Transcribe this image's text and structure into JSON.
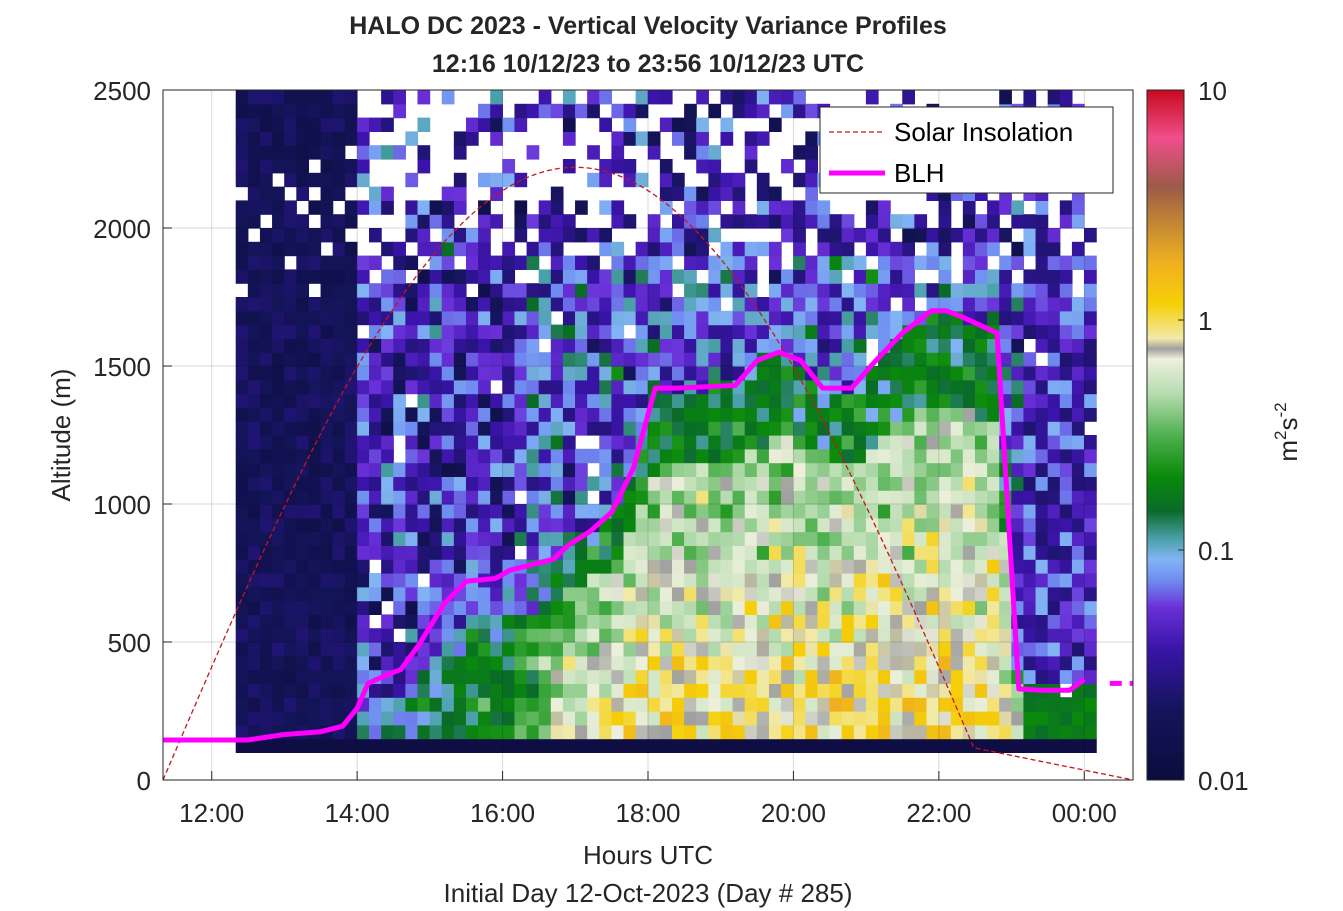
{
  "chart_data": {
    "type": "heatmap",
    "title": "HALO DC 2023 - Vertical Velocity Variance Profiles",
    "subtitle": "12:16 10/12/23 to 23:56 10/12/23  UTC",
    "xlabel": "Hours UTC",
    "xlabel2": "Initial Day 12-Oct-2023 (Day # 285)",
    "ylabel": "Altitude (m)",
    "colorbar_label_base": "m",
    "colorbar_label_exp1": "2",
    "colorbar_label_mid": "s",
    "colorbar_label_exp2": "-2",
    "xlim_hours": [
      11.33,
      24.67
    ],
    "ylim": [
      0,
      2500
    ],
    "x_ticks": [
      {
        "v": 12,
        "label": "12:00"
      },
      {
        "v": 14,
        "label": "14:00"
      },
      {
        "v": 16,
        "label": "16:00"
      },
      {
        "v": 18,
        "label": "18:00"
      },
      {
        "v": 20,
        "label": "20:00"
      },
      {
        "v": 22,
        "label": "22:00"
      },
      {
        "v": 24,
        "label": "00:00"
      }
    ],
    "y_ticks": [
      {
        "v": 0,
        "label": "0"
      },
      {
        "v": 500,
        "label": "500"
      },
      {
        "v": 1000,
        "label": "1000"
      },
      {
        "v": 1500,
        "label": "1500"
      },
      {
        "v": 2000,
        "label": "2000"
      },
      {
        "v": 2500,
        "label": "2500"
      }
    ],
    "colorbar": {
      "scale": "log",
      "range": [
        0.01,
        10
      ],
      "ticks": [
        {
          "v": 0.01,
          "label": "0.01"
        },
        {
          "v": 0.1,
          "label": "0.1"
        },
        {
          "v": 1,
          "label": "1"
        },
        {
          "v": 10,
          "label": "10"
        }
      ],
      "stops": [
        {
          "p": 0.0,
          "c": "#0c0c3e"
        },
        {
          "p": 0.1,
          "c": "#14145a"
        },
        {
          "p": 0.19,
          "c": "#3a14a8"
        },
        {
          "p": 0.25,
          "c": "#6a30d8"
        },
        {
          "p": 0.29,
          "c": "#6f8ef0"
        },
        {
          "p": 0.32,
          "c": "#82b4f4"
        },
        {
          "p": 0.35,
          "c": "#4aa0a8"
        },
        {
          "p": 0.39,
          "c": "#0a6a2a"
        },
        {
          "p": 0.44,
          "c": "#0a8a0a"
        },
        {
          "p": 0.5,
          "c": "#50b050"
        },
        {
          "p": 0.56,
          "c": "#b6dcb0"
        },
        {
          "p": 0.61,
          "c": "#eef0dc"
        },
        {
          "p": 0.625,
          "c": "#a0a0a0"
        },
        {
          "p": 0.64,
          "c": "#f2eaa8"
        },
        {
          "p": 0.69,
          "c": "#f5cf08"
        },
        {
          "p": 0.75,
          "c": "#f0b020"
        },
        {
          "p": 0.8,
          "c": "#c88c30"
        },
        {
          "p": 0.86,
          "c": "#9c5a48"
        },
        {
          "p": 0.93,
          "c": "#f04e8c"
        },
        {
          "p": 1.0,
          "c": "#c80a1e"
        }
      ]
    },
    "grid": true,
    "legend_position": "top-right",
    "legend": [
      {
        "name": "Solar Insolation",
        "color": "#c8141e",
        "style": "dashed"
      },
      {
        "name": "BLH",
        "color": "#ff00ff",
        "style": "solid"
      }
    ],
    "cell_columns_hours": [
      12.33,
      13.95
    ],
    "cell_height_m": 50,
    "solar_insolation": {
      "start_hours": 11.33,
      "peak_hours": 17.0,
      "end_hours": 22.5,
      "peak_altitude_scaled": 2220,
      "after_end_value": 0,
      "end_display_hours": 24.67
    },
    "blh": {
      "hours": [
        11.33,
        12.0,
        12.5,
        13.0,
        13.5,
        13.8,
        14.0,
        14.15,
        14.4,
        14.6,
        14.85,
        15.2,
        15.5,
        15.9,
        16.1,
        16.4,
        16.7,
        16.9,
        17.2,
        17.5,
        17.8,
        18.1,
        18.4,
        19.2,
        19.5,
        19.8,
        20.1,
        20.4,
        20.8,
        21.1,
        21.5,
        21.9,
        22.1,
        22.3,
        22.8,
        23.1,
        23.4,
        23.8,
        24.0
      ],
      "values": [
        145,
        145,
        145,
        165,
        175,
        195,
        260,
        350,
        380,
        400,
        490,
        640,
        720,
        730,
        760,
        780,
        800,
        850,
        900,
        970,
        1130,
        1420,
        1420,
        1430,
        1520,
        1550,
        1520,
        1420,
        1420,
        1510,
        1620,
        1700,
        1700,
        1680,
        1620,
        330,
        325,
        325,
        365
      ],
      "tail_hours": [
        24.35,
        24.67
      ],
      "tail_values": [
        350,
        350
      ]
    }
  }
}
